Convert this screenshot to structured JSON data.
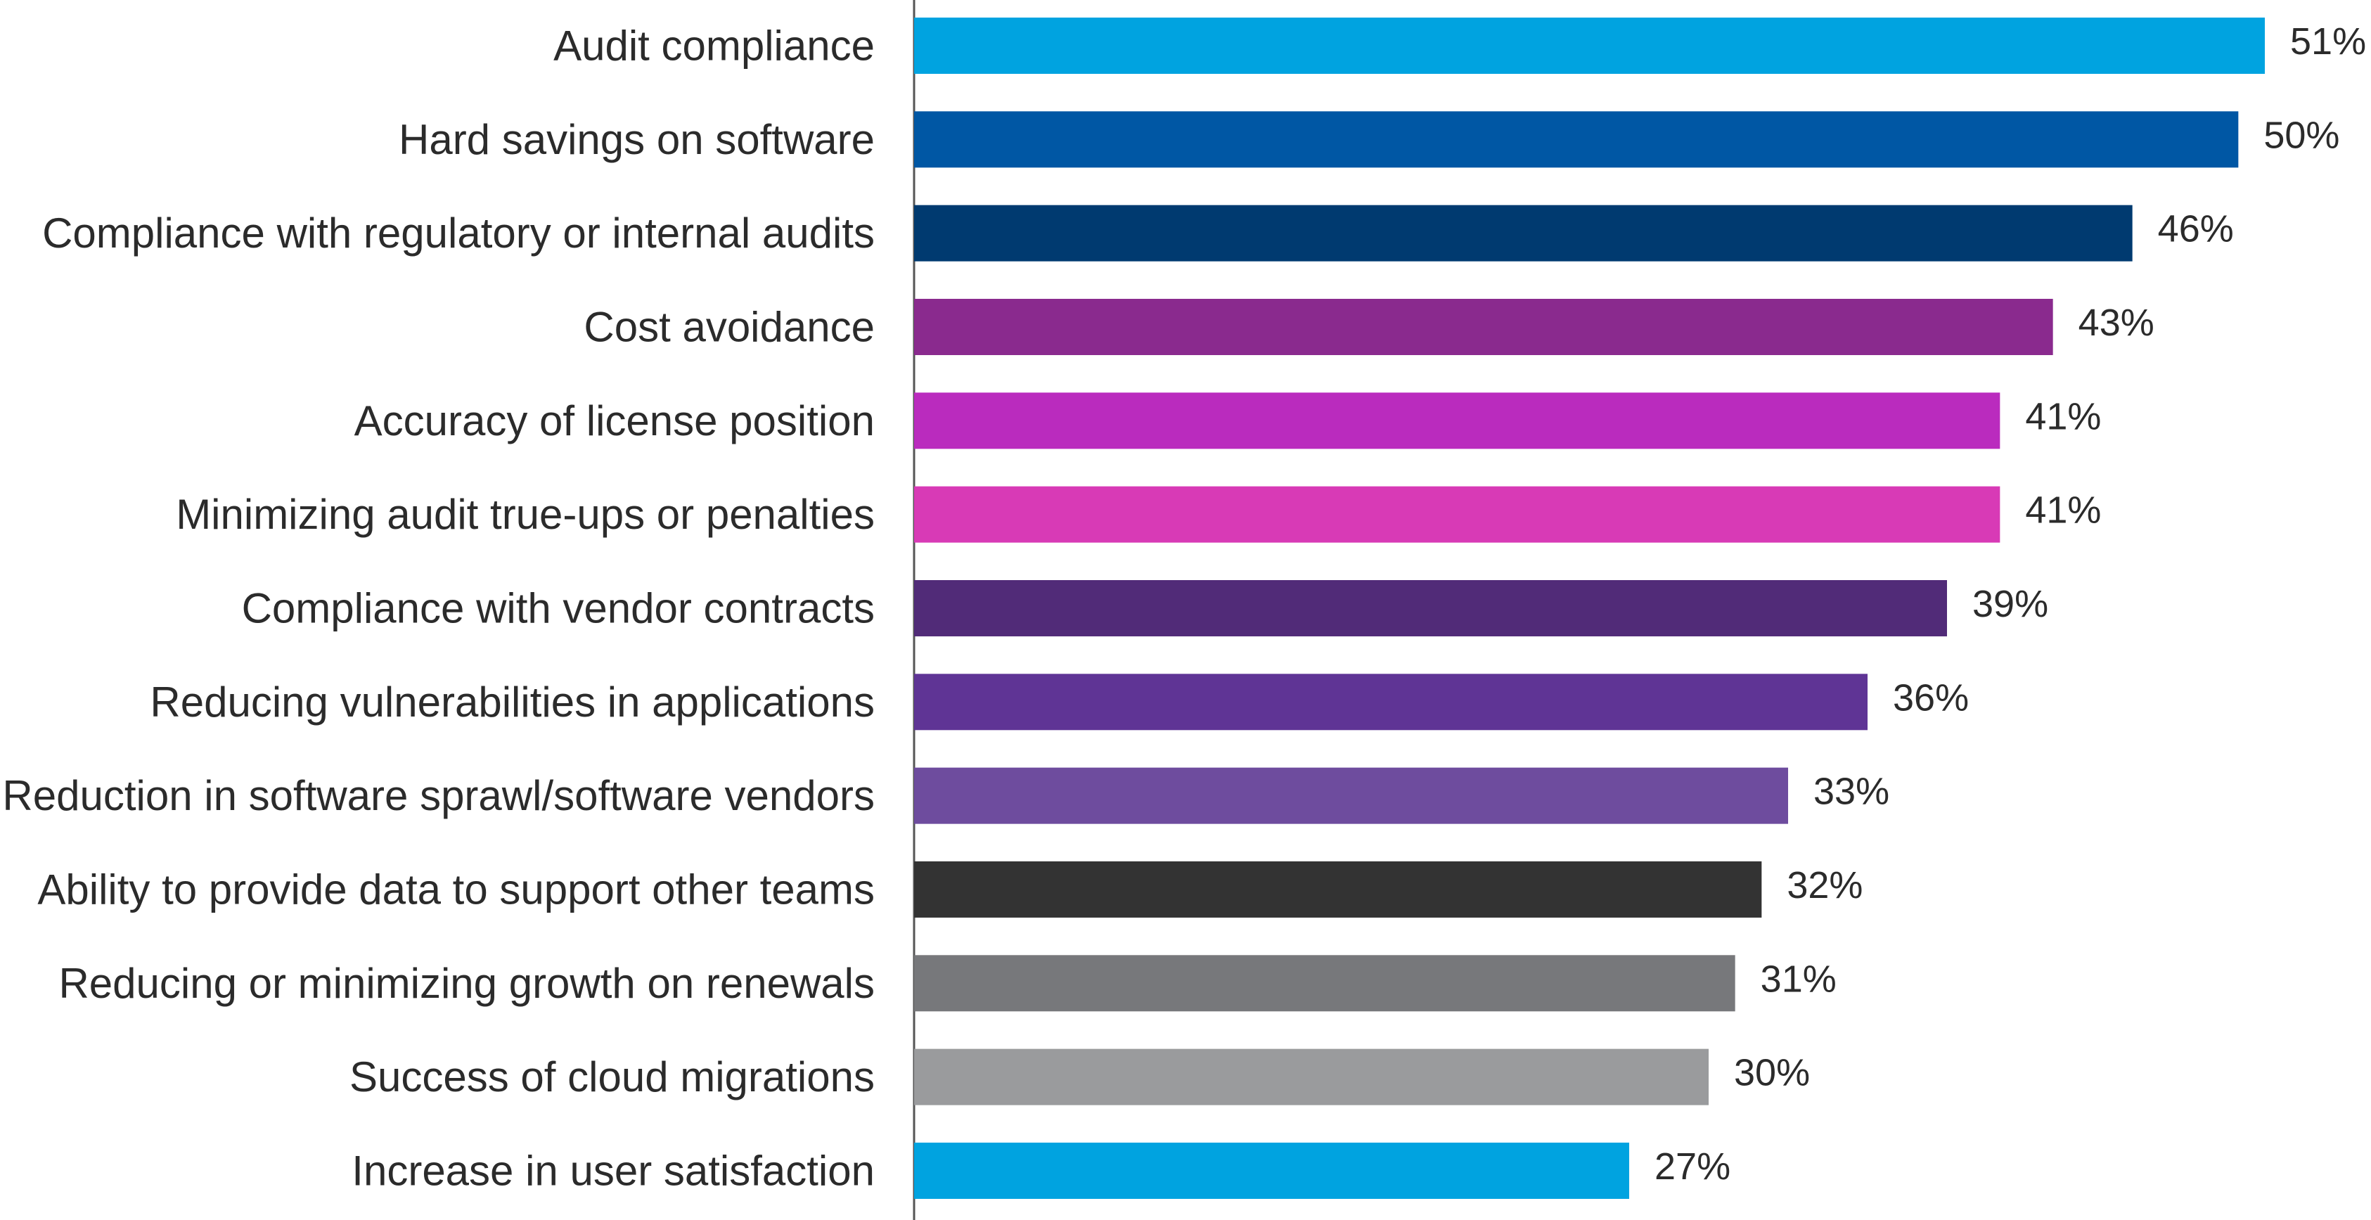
{
  "chart_data": {
    "type": "bar",
    "orientation": "horizontal",
    "title": "",
    "xlabel": "",
    "ylabel": "",
    "xlim": [
      0,
      55
    ],
    "grid": false,
    "value_suffix": "%",
    "categories": [
      "Audit compliance",
      "Hard savings on software",
      "Compliance with regulatory or internal audits",
      "Cost avoidance",
      "Accuracy of license position",
      "Minimizing audit true-ups or penalties",
      "Compliance with vendor contracts",
      "Reducing vulnerabilities in applications",
      "Reduction in software sprawl/software vendors",
      "Ability to provide data to support other teams",
      "Reducing or minimizing growth on renewals",
      "Success of cloud migrations",
      "Increase in user satisfaction"
    ],
    "values": [
      51,
      50,
      46,
      43,
      41,
      41,
      39,
      36,
      33,
      32,
      31,
      30,
      27
    ],
    "value_labels": [
      "51%",
      "50%",
      "46%",
      "43%",
      "41%",
      "41%",
      "39%",
      "36%",
      "33%",
      "32%",
      "31%",
      "30%",
      "27%"
    ],
    "colors": [
      "#00a3e0",
      "#0057a4",
      "#003a70",
      "#8a2a8e",
      "#ba2bbe",
      "#d83ab6",
      "#512b78",
      "#5f3495",
      "#6e4c9e",
      "#333333",
      "#77787b",
      "#9a9b9d",
      "#00a3e0"
    ]
  }
}
